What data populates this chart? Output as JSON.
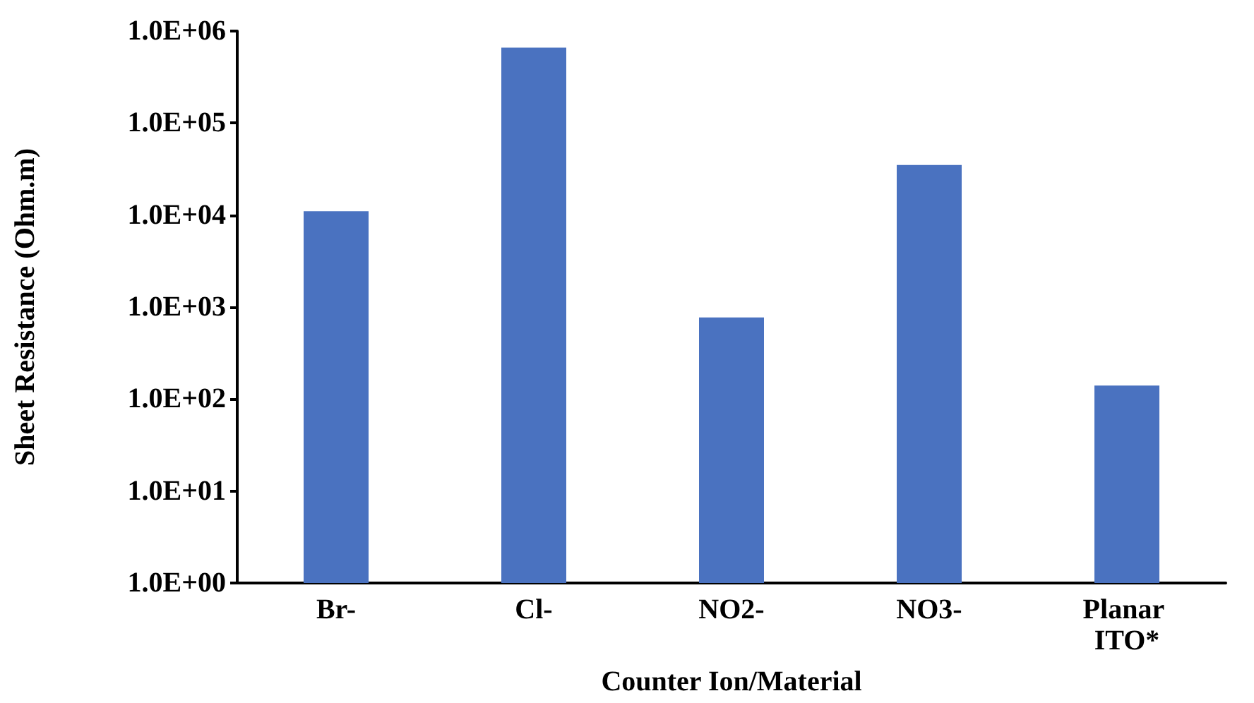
{
  "chart_data": {
    "type": "bar",
    "xlabel": "Counter Ion/Material",
    "ylabel": "Sheet Resistance (Ohm.m)",
    "categories": [
      "Br-",
      "Cl-",
      "NO2-",
      "NO3-",
      "Planar ITO*"
    ],
    "values": [
      11000,
      660000,
      770,
      35000,
      140
    ],
    "color": "#4a72c0",
    "log": true,
    "grid": false,
    "ylim": [
      1,
      1000000
    ],
    "yticks": [
      {
        "value": 1,
        "label": "1.0E+00"
      },
      {
        "value": 10,
        "label": "1.0E+01"
      },
      {
        "value": 100,
        "label": "1.0E+02"
      },
      {
        "value": 1000,
        "label": "1.0E+03"
      },
      {
        "value": 10000,
        "label": "1.0E+04"
      },
      {
        "value": 100000,
        "label": "1.0E+05"
      },
      {
        "value": 1000000,
        "label": "1.0E+06"
      }
    ]
  }
}
